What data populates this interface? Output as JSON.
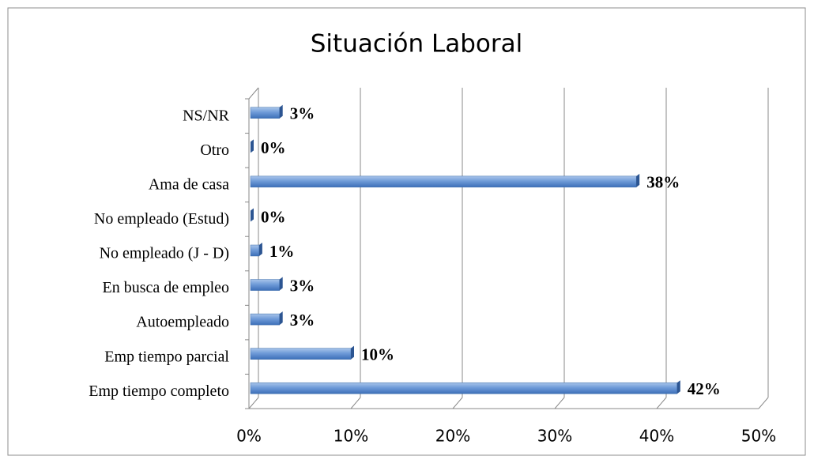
{
  "chart_data": {
    "type": "bar",
    "orientation": "horizontal",
    "title": "Situación Laboral",
    "categories": [
      "Emp tiempo completo",
      "Emp tiempo parcial",
      "Autoempleado",
      "En busca de empleo",
      "No empleado (J - D)",
      "No empleado (Estud)",
      "Ama de casa",
      "Otro",
      "NS/NR"
    ],
    "values": [
      42,
      10,
      3,
      3,
      1,
      0,
      38,
      0,
      3
    ],
    "value_labels": [
      "42%",
      "10%",
      "3%",
      "3%",
      "1%",
      "0%",
      "38%",
      "0%",
      "3%"
    ],
    "color": "#4f81bd",
    "xlim": [
      0,
      50
    ],
    "xticks": [
      {
        "value": 0,
        "label": "0%"
      },
      {
        "value": 10,
        "label": "10%"
      },
      {
        "value": 20,
        "label": "20%"
      },
      {
        "value": 30,
        "label": "30%"
      },
      {
        "value": 40,
        "label": "40%"
      },
      {
        "value": 50,
        "label": "50%"
      }
    ],
    "grid": true
  }
}
